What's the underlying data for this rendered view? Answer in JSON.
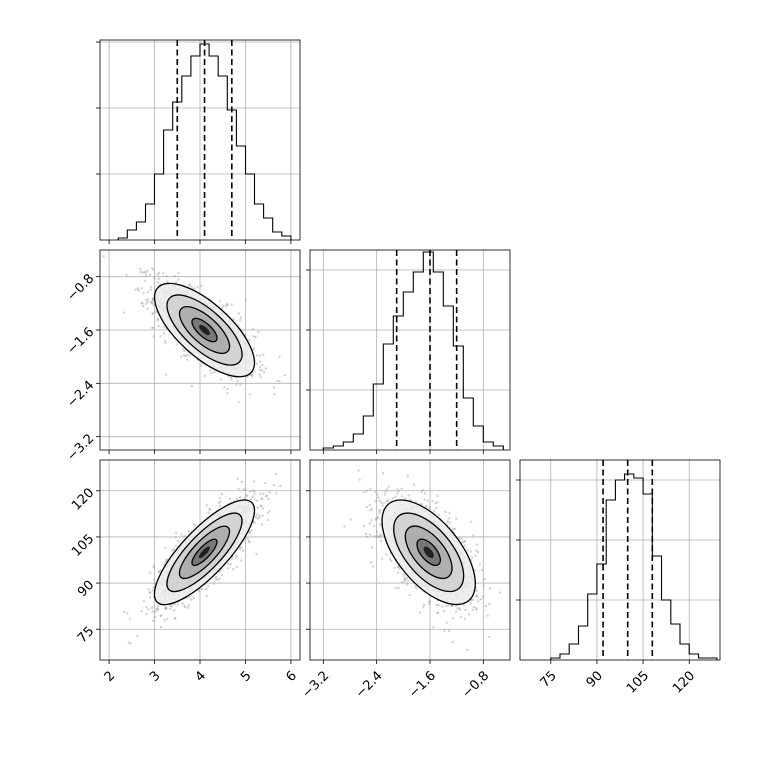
{
  "chart_data": {
    "type": "corner",
    "title": "",
    "parameters": [
      {
        "index": 0,
        "label": "",
        "range": [
          1.8,
          6.2
        ],
        "ticks": [
          2,
          3,
          4,
          5,
          6
        ],
        "tick_labels": [
          "2",
          "3",
          "4",
          "5",
          "6"
        ],
        "quantiles": [
          3.5,
          4.1,
          4.7
        ],
        "histogram": {
          "bin_edges": [
            2.2,
            2.4,
            2.6,
            2.8,
            3.0,
            3.2,
            3.4,
            3.6,
            3.8,
            4.0,
            4.2,
            4.4,
            4.6,
            4.8,
            5.0,
            5.2,
            5.4,
            5.6,
            5.8,
            6.0
          ],
          "counts": [
            0.01,
            0.05,
            0.09,
            0.18,
            0.33,
            0.55,
            0.69,
            0.82,
            0.92,
            0.98,
            0.92,
            0.82,
            0.65,
            0.47,
            0.33,
            0.18,
            0.11,
            0.04,
            0.02
          ],
          "ytick_fractions": [
            0.33,
            0.66,
            0.99
          ]
        }
      },
      {
        "index": 1,
        "label": "",
        "range": [
          -3.4,
          -0.4
        ],
        "ticks": [
          -3.2,
          -2.4,
          -1.6,
          -0.8
        ],
        "tick_labels": [
          "−3.2",
          "−2.4",
          "−1.6",
          "−0.8"
        ],
        "quantiles": [
          -2.1,
          -1.6,
          -1.2
        ],
        "histogram": {
          "bin_edges": [
            -3.2,
            -3.05,
            -2.9,
            -2.75,
            -2.6,
            -2.45,
            -2.3,
            -2.15,
            -2.0,
            -1.85,
            -1.7,
            -1.55,
            -1.4,
            -1.25,
            -1.1,
            -0.95,
            -0.8,
            -0.65,
            -0.5
          ],
          "counts": [
            0.01,
            0.02,
            0.04,
            0.08,
            0.17,
            0.33,
            0.53,
            0.67,
            0.79,
            0.89,
            0.99,
            0.89,
            0.72,
            0.52,
            0.26,
            0.12,
            0.04,
            0.02
          ],
          "ytick_fractions": [
            0.3,
            0.6,
            0.9
          ]
        }
      },
      {
        "index": 2,
        "label": "",
        "range": [
          65,
          130
        ],
        "ticks": [
          75,
          90,
          105,
          120
        ],
        "tick_labels": [
          "75",
          "90",
          "105",
          "120"
        ],
        "quantiles": [
          92,
          100,
          108
        ],
        "histogram": {
          "bin_edges": [
            75,
            78,
            81,
            84,
            87,
            90,
            93,
            96,
            99,
            102,
            105,
            108,
            111,
            114,
            117,
            120,
            123,
            126,
            129
          ],
          "counts": [
            0.01,
            0.03,
            0.08,
            0.17,
            0.33,
            0.48,
            0.8,
            0.9,
            0.93,
            0.91,
            0.83,
            0.52,
            0.3,
            0.18,
            0.08,
            0.03,
            0.01,
            0.01
          ],
          "ytick_fractions": [
            0.3,
            0.6,
            0.9
          ]
        }
      }
    ],
    "pairs": [
      {
        "x": 0,
        "y": 1,
        "center": [
          4.1,
          -1.6
        ],
        "sd": [
          0.55,
          0.35
        ],
        "rho": -0.7
      },
      {
        "x": 0,
        "y": 2,
        "center": [
          4.1,
          100
        ],
        "sd": [
          0.55,
          8.5
        ],
        "rho": 0.8
      },
      {
        "x": 1,
        "y": 2,
        "center": [
          -1.62,
          100
        ],
        "sd": [
          0.35,
          8.5
        ],
        "rho": -0.6
      }
    ],
    "contour_levels_sigma": [
      0.5,
      1.0,
      1.5,
      2.0
    ],
    "grid": true,
    "colors": {
      "ink": "#000000",
      "grid": "#b0b0b0",
      "scatter": "#9a9a9a"
    }
  }
}
